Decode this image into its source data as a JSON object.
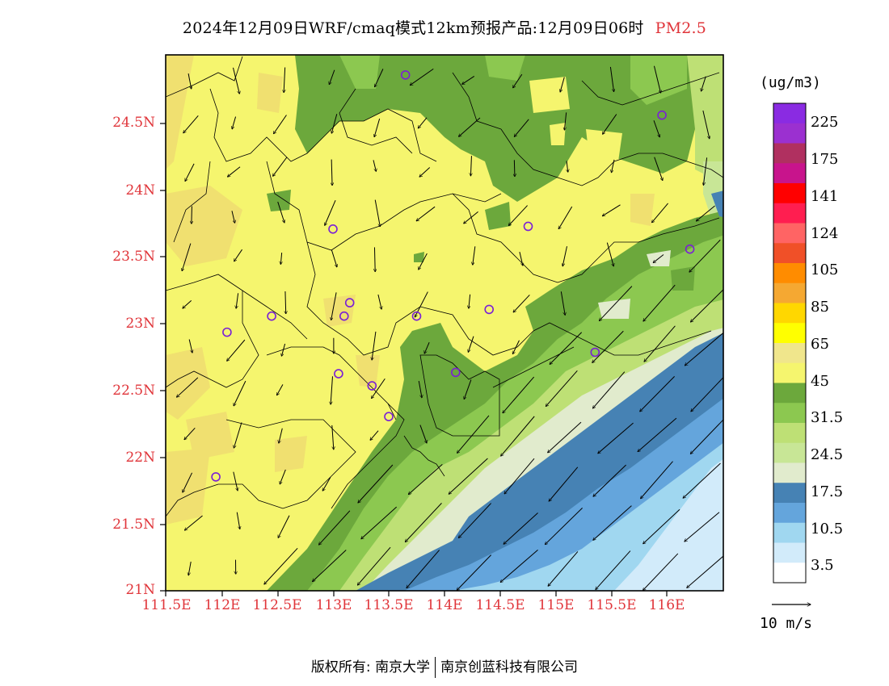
{
  "title": {
    "main": "2024年12月09日WRF/cmaq模式12km预报产品:12月09日06时",
    "species": "PM2.5"
  },
  "axes": {
    "y_ticks": [
      "24.5N",
      "24N",
      "23.5N",
      "23N",
      "22.5N",
      "22N",
      "21.5N",
      "21N"
    ],
    "x_ticks": [
      "111.5E",
      "112E",
      "112.5E",
      "113E",
      "113.5E",
      "114E",
      "114.5E",
      "115E",
      "115.5E",
      "116E"
    ],
    "lon_range": [
      111.5,
      116.5
    ],
    "lat_range": [
      21.0,
      25.0
    ]
  },
  "colorbar": {
    "unit": "(ug/m3)",
    "labels": [
      "225",
      "175",
      "141",
      "124",
      "105",
      "85",
      "65",
      "45",
      "31.5",
      "24.5",
      "17.5",
      "10.5",
      "3.5"
    ],
    "colors_top_to_bottom": [
      "#8a2be2",
      "#9b30d0",
      "#b03060",
      "#c8148c",
      "#ff0000",
      "#ff1e50",
      "#ff6464",
      "#f05028",
      "#ff8c00",
      "#f5a832",
      "#ffd700",
      "#ffff00",
      "#f0e68c",
      "#f5f56e",
      "#6ca83c",
      "#8cc850",
      "#bee075",
      "#c8e696",
      "#e1ebcd",
      "#4682b4",
      "#64a5dc",
      "#a0d7f0",
      "#d2ebfa",
      "#ffffff"
    ]
  },
  "wind_reference": {
    "label": "10 m/s"
  },
  "stations": [
    {
      "lon": 113.65,
      "lat": 24.85
    },
    {
      "lon": 115.95,
      "lat": 24.55
    },
    {
      "lon": 113.0,
      "lat": 23.7
    },
    {
      "lon": 114.75,
      "lat": 23.72
    },
    {
      "lon": 116.2,
      "lat": 23.55
    },
    {
      "lon": 112.45,
      "lat": 23.05
    },
    {
      "lon": 113.15,
      "lat": 23.15
    },
    {
      "lon": 113.1,
      "lat": 23.05
    },
    {
      "lon": 113.75,
      "lat": 23.05
    },
    {
      "lon": 114.4,
      "lat": 23.1
    },
    {
      "lon": 112.05,
      "lat": 22.93
    },
    {
      "lon": 113.05,
      "lat": 22.62
    },
    {
      "lon": 113.35,
      "lat": 22.53
    },
    {
      "lon": 114.1,
      "lat": 22.63
    },
    {
      "lon": 115.35,
      "lat": 22.78
    },
    {
      "lon": 113.5,
      "lat": 22.3
    },
    {
      "lon": 111.95,
      "lat": 21.85
    }
  ],
  "footer": {
    "copyright_label": "版权所有:",
    "owner1": "南京大学",
    "owner2": "南京创蓝科技有限公司"
  }
}
